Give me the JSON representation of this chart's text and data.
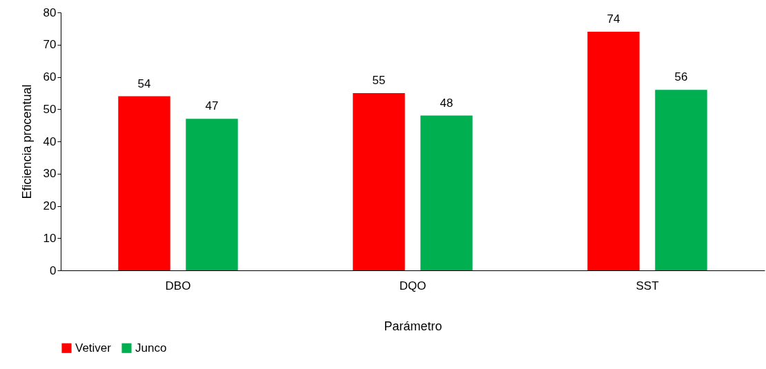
{
  "chart_data": {
    "type": "bar",
    "xlabel": "Parámetro",
    "ylabel": "Eficiencia procentual",
    "categories": [
      "DBO",
      "DQO",
      "SST"
    ],
    "series": [
      {
        "name": "Vetiver",
        "color": "#ff0000",
        "values": [
          54,
          55,
          74
        ]
      },
      {
        "name": "Junco",
        "color": "#00b050",
        "values": [
          47,
          48,
          56
        ]
      }
    ],
    "ylim": [
      0,
      80
    ],
    "yticks": [
      0,
      10,
      20,
      30,
      40,
      50,
      60,
      70,
      80
    ],
    "grid": false,
    "legend": "bottom",
    "data_labels": true
  }
}
